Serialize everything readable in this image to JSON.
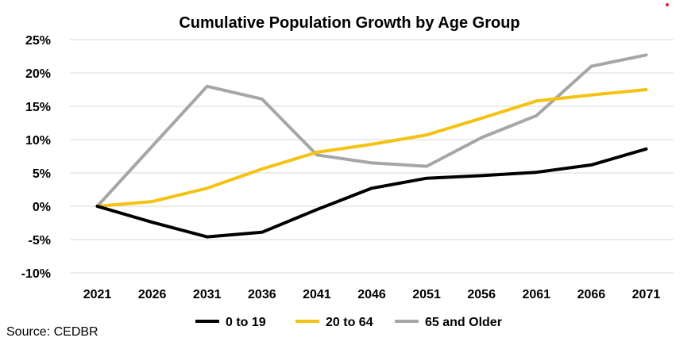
{
  "source_text": "Source: CEDBR",
  "marker_color": "#e02020",
  "chart_data": {
    "type": "line",
    "title": "Cumulative Population Growth by Age Group",
    "xlabel": "",
    "ylabel": "",
    "x": [
      "2021",
      "2026",
      "2031",
      "2036",
      "2041",
      "2046",
      "2051",
      "2056",
      "2061",
      "2066",
      "2071"
    ],
    "ylim": [
      -10,
      25
    ],
    "yticks": [
      -10,
      -5,
      0,
      5,
      10,
      15,
      20,
      25
    ],
    "ytick_labels": [
      "-10%",
      "-5%",
      "0%",
      "5%",
      "10%",
      "15%",
      "20%",
      "25%"
    ],
    "grid": true,
    "legend_position": "bottom",
    "series": [
      {
        "name": "0 to 19",
        "color": "#000000",
        "values": [
          0,
          -2.4,
          -4.6,
          -3.9,
          -0.5,
          2.7,
          4.2,
          4.6,
          5.1,
          6.2,
          8.6
        ]
      },
      {
        "name": "20 to 64",
        "color": "#f5c211",
        "values": [
          0,
          0.7,
          2.7,
          5.6,
          8.1,
          9.3,
          10.7,
          13.2,
          15.8,
          16.7,
          17.5
        ]
      },
      {
        "name": "65 and Older",
        "color": "#a6a6a6",
        "values": [
          0,
          9.0,
          18.0,
          16.1,
          7.7,
          6.5,
          6.0,
          10.3,
          13.6,
          21.0,
          22.7
        ]
      }
    ]
  }
}
